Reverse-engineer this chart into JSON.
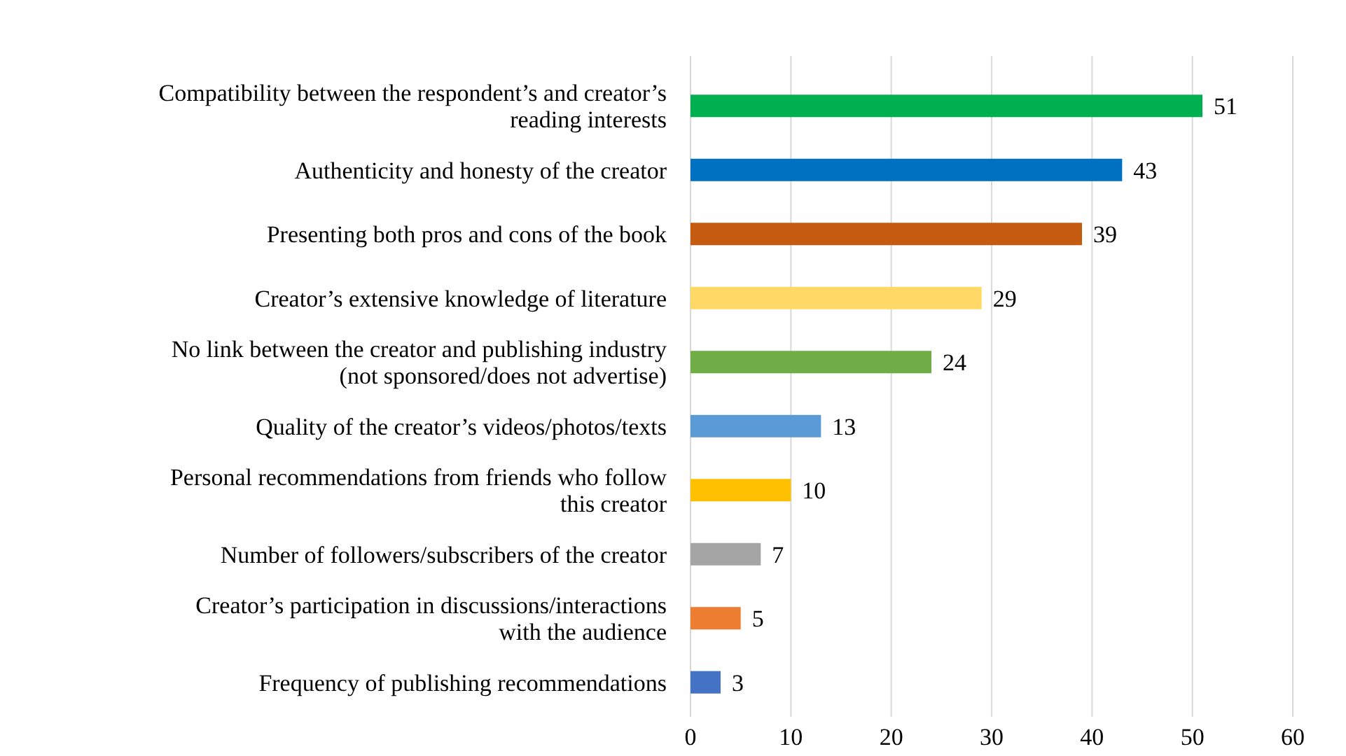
{
  "chart_data": {
    "type": "bar",
    "orientation": "horizontal",
    "categories": [
      "Compatibility between the respondent’s and creator’s\nreading interests",
      "Authenticity and honesty of the creator",
      "Presenting both pros and cons of the book",
      "Creator’s extensive knowledge of literature",
      "No link between the creator and publishing industry\n(not sponsored/does not advertise)",
      "Quality of the creator’s videos/photos/texts",
      "Personal recommendations from friends who follow\nthis creator",
      "Number of followers/subscribers of the creator",
      "Creator’s participation in discussions/interactions\nwith the audience",
      "Frequency of publishing recommendations"
    ],
    "values": [
      51,
      43,
      39,
      29,
      24,
      13,
      10,
      7,
      5,
      3
    ],
    "colors": [
      "#00b050",
      "#0070c0",
      "#c55a11",
      "#ffd966",
      "#70ad47",
      "#5b9bd5",
      "#ffc000",
      "#a5a5a5",
      "#ed7d31",
      "#4472c4"
    ],
    "xlim": [
      0,
      60
    ],
    "xticks": [
      0,
      10,
      20,
      30,
      40,
      50,
      60
    ],
    "grid": "x",
    "data_labels": true
  }
}
